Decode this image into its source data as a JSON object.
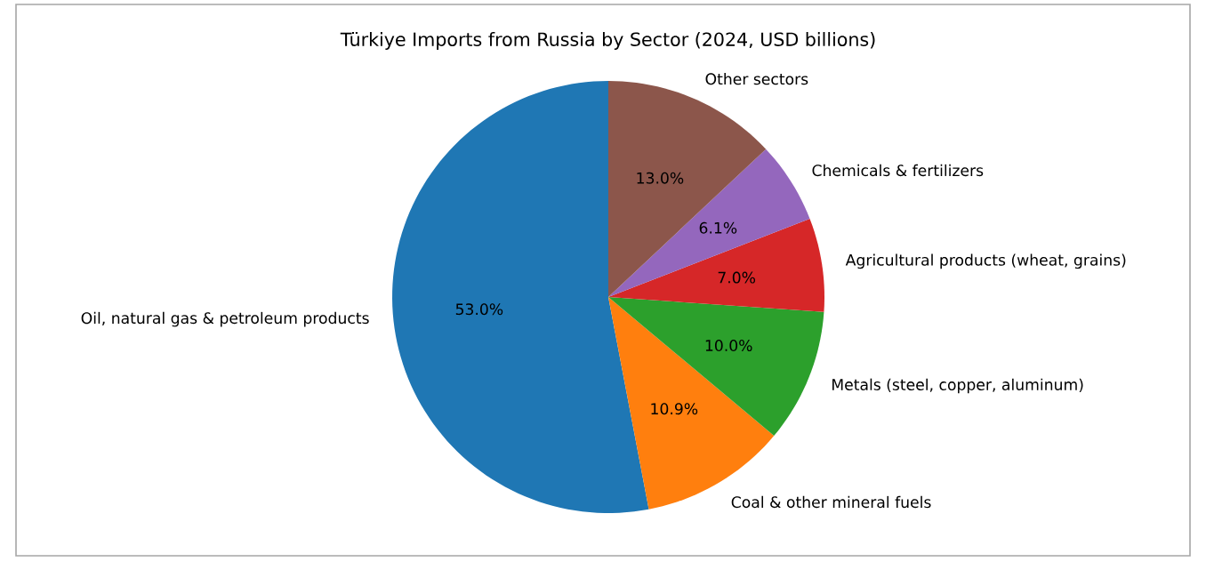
{
  "chart_data": {
    "type": "pie",
    "title": "Türkiye Imports from Russia by Sector (2024, USD billions)",
    "categories": [
      "Oil, natural gas & petroleum products",
      "Coal & other mineral fuels",
      "Metals (steel, copper, aluminum)",
      "Agricultural products (wheat, grains)",
      "Chemicals & fertilizers",
      "Other sectors"
    ],
    "values": [
      53.0,
      10.9,
      10.0,
      7.0,
      6.1,
      13.0
    ],
    "value_labels": [
      "53.0%",
      "10.9%",
      "10.0%",
      "7.0%",
      "6.1%",
      "13.0%"
    ],
    "colors": [
      "#1f77b4",
      "#ff7f0e",
      "#2ca02c",
      "#d62728",
      "#9467bd",
      "#8c564b"
    ]
  }
}
